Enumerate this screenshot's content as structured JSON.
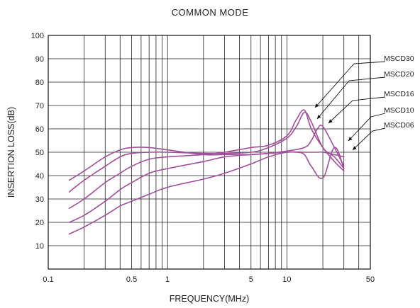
{
  "chart_data": {
    "type": "line",
    "title": "COMMON MODE",
    "xlabel": "FREQUENCY(MHz)",
    "ylabel": "INSERTION LOSS(dB)",
    "xscale": "log",
    "xlim": [
      0.1,
      50
    ],
    "ylim": [
      0,
      100
    ],
    "grid": true,
    "legend": "right, labels with leader arrows",
    "line_color": "#a0509a",
    "x_ticks": [
      {
        "value": 0.1,
        "label": "0.1"
      },
      {
        "value": 0.5,
        "label": "0.5"
      },
      {
        "value": 1,
        "label": "1"
      },
      {
        "value": 5,
        "label": "5"
      },
      {
        "value": 10,
        "label": "10"
      },
      {
        "value": 50,
        "label": "50"
      }
    ],
    "y_ticks": [
      {
        "value": 10,
        "label": "10"
      },
      {
        "value": 20,
        "label": "20"
      },
      {
        "value": 30,
        "label": "30"
      },
      {
        "value": 40,
        "label": "40"
      },
      {
        "value": 50,
        "label": "50"
      },
      {
        "value": 60,
        "label": "60"
      },
      {
        "value": 70,
        "label": "70"
      },
      {
        "value": 80,
        "label": "80"
      },
      {
        "value": 90,
        "label": "90"
      },
      {
        "value": 100,
        "label": "100"
      }
    ],
    "series": [
      {
        "name": "MSCD30",
        "x": [
          0.15,
          0.2,
          0.3,
          0.4,
          0.5,
          0.7,
          1,
          2,
          3,
          5,
          7,
          10,
          12,
          14,
          16,
          20,
          25,
          30
        ],
        "y": [
          38,
          42,
          48,
          51,
          52,
          52,
          51,
          49,
          49,
          49,
          49.5,
          50,
          50,
          49,
          44,
          39,
          52,
          43
        ]
      },
      {
        "name": "MSCD20",
        "x": [
          0.15,
          0.2,
          0.3,
          0.4,
          0.5,
          0.7,
          1,
          2,
          3,
          5,
          7,
          10,
          12,
          14,
          16,
          20,
          25,
          30
        ],
        "y": [
          33,
          38,
          44,
          48,
          49.5,
          50,
          50,
          49.5,
          49.5,
          50,
          52,
          56,
          61,
          67,
          63,
          52,
          48,
          43
        ]
      },
      {
        "name": "MSCD16",
        "x": [
          0.15,
          0.2,
          0.3,
          0.4,
          0.5,
          0.7,
          1,
          2,
          3,
          5,
          7,
          10,
          12,
          14,
          16,
          20,
          25,
          30
        ],
        "y": [
          26,
          30,
          37,
          41,
          44,
          47,
          48,
          49,
          50,
          52,
          53,
          57,
          64,
          68,
          60,
          52,
          46,
          42
        ]
      },
      {
        "name": "MSCD10",
        "x": [
          0.15,
          0.2,
          0.3,
          0.4,
          0.5,
          0.7,
          1,
          2,
          3,
          5,
          7,
          10,
          14,
          16,
          18,
          20,
          25,
          30
        ],
        "y": [
          20,
          23,
          29,
          34,
          37,
          41,
          43,
          46,
          48,
          49,
          49.5,
          50.5,
          52,
          55,
          60,
          61,
          52,
          44
        ]
      },
      {
        "name": "MSCD06",
        "x": [
          0.15,
          0.2,
          0.3,
          0.4,
          0.5,
          0.7,
          1,
          2,
          3,
          5,
          7,
          10,
          14,
          16,
          18,
          20,
          25,
          30
        ],
        "y": [
          15,
          18,
          23,
          27,
          29,
          32,
          35,
          38.5,
          41,
          45,
          48,
          50,
          50,
          50,
          50,
          50,
          49,
          48
        ]
      }
    ]
  }
}
